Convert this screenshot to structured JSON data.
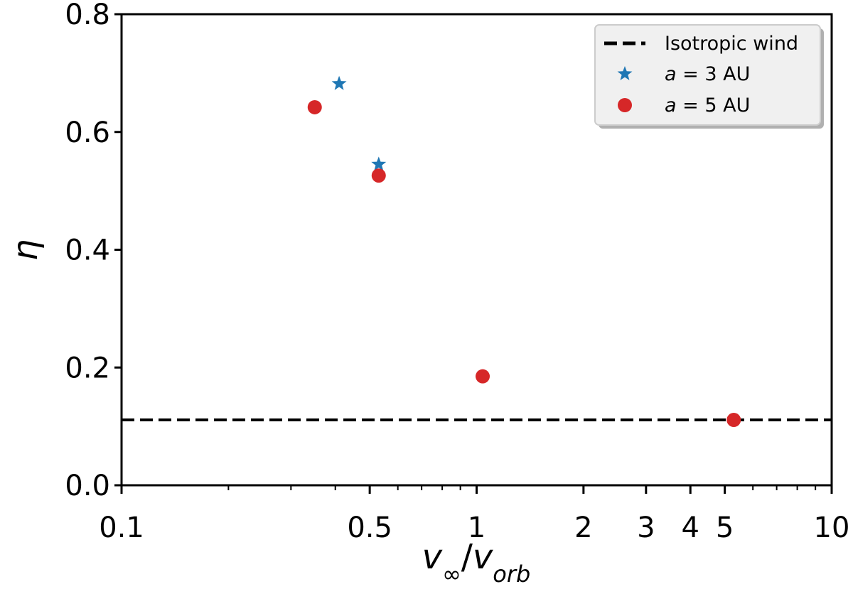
{
  "chart_data": {
    "type": "scatter",
    "title": "",
    "xlabel": "v∞/vorb",
    "ylabel": "η",
    "xscale": "log",
    "xlim": [
      0.1,
      10
    ],
    "ylim": [
      0.0,
      0.8
    ],
    "x_ticks": [
      0.1,
      0.5,
      1,
      2,
      3,
      4,
      5,
      10
    ],
    "x_tick_labels": [
      "0.1",
      "0.5",
      "1",
      "2",
      "3",
      "4",
      "5",
      "10"
    ],
    "y_ticks": [
      0.0,
      0.2,
      0.4,
      0.6,
      0.8
    ],
    "y_tick_labels": [
      "0.0",
      "0.2",
      "0.4",
      "0.6",
      "0.8"
    ],
    "grid": false,
    "legend_position": "top-right",
    "hline": {
      "name": "Isotropic wind",
      "y": 0.111,
      "style": "dashed",
      "color": "#000000"
    },
    "series": [
      {
        "name": "a = 3 AU",
        "marker": "star",
        "color": "#1f77b4",
        "points": [
          {
            "x": 0.41,
            "y": 0.682
          },
          {
            "x": 0.53,
            "y": 0.545
          }
        ]
      },
      {
        "name": "a = 5 AU",
        "marker": "circle",
        "color": "#d62728",
        "points": [
          {
            "x": 0.35,
            "y": 0.642
          },
          {
            "x": 0.53,
            "y": 0.526
          },
          {
            "x": 1.04,
            "y": 0.185
          },
          {
            "x": 5.3,
            "y": 0.111
          }
        ]
      }
    ],
    "legend": {
      "isotropic_label": "Isotropic wind",
      "a3_var": "a",
      "a3_rest": " = 3 AU",
      "a5_var": "a",
      "a5_rest": " = 5 AU"
    },
    "xlabel_parts": {
      "v1": "v",
      "sub1": "∞",
      "slash": "/",
      "v2": "v",
      "sub2": "orb"
    }
  }
}
